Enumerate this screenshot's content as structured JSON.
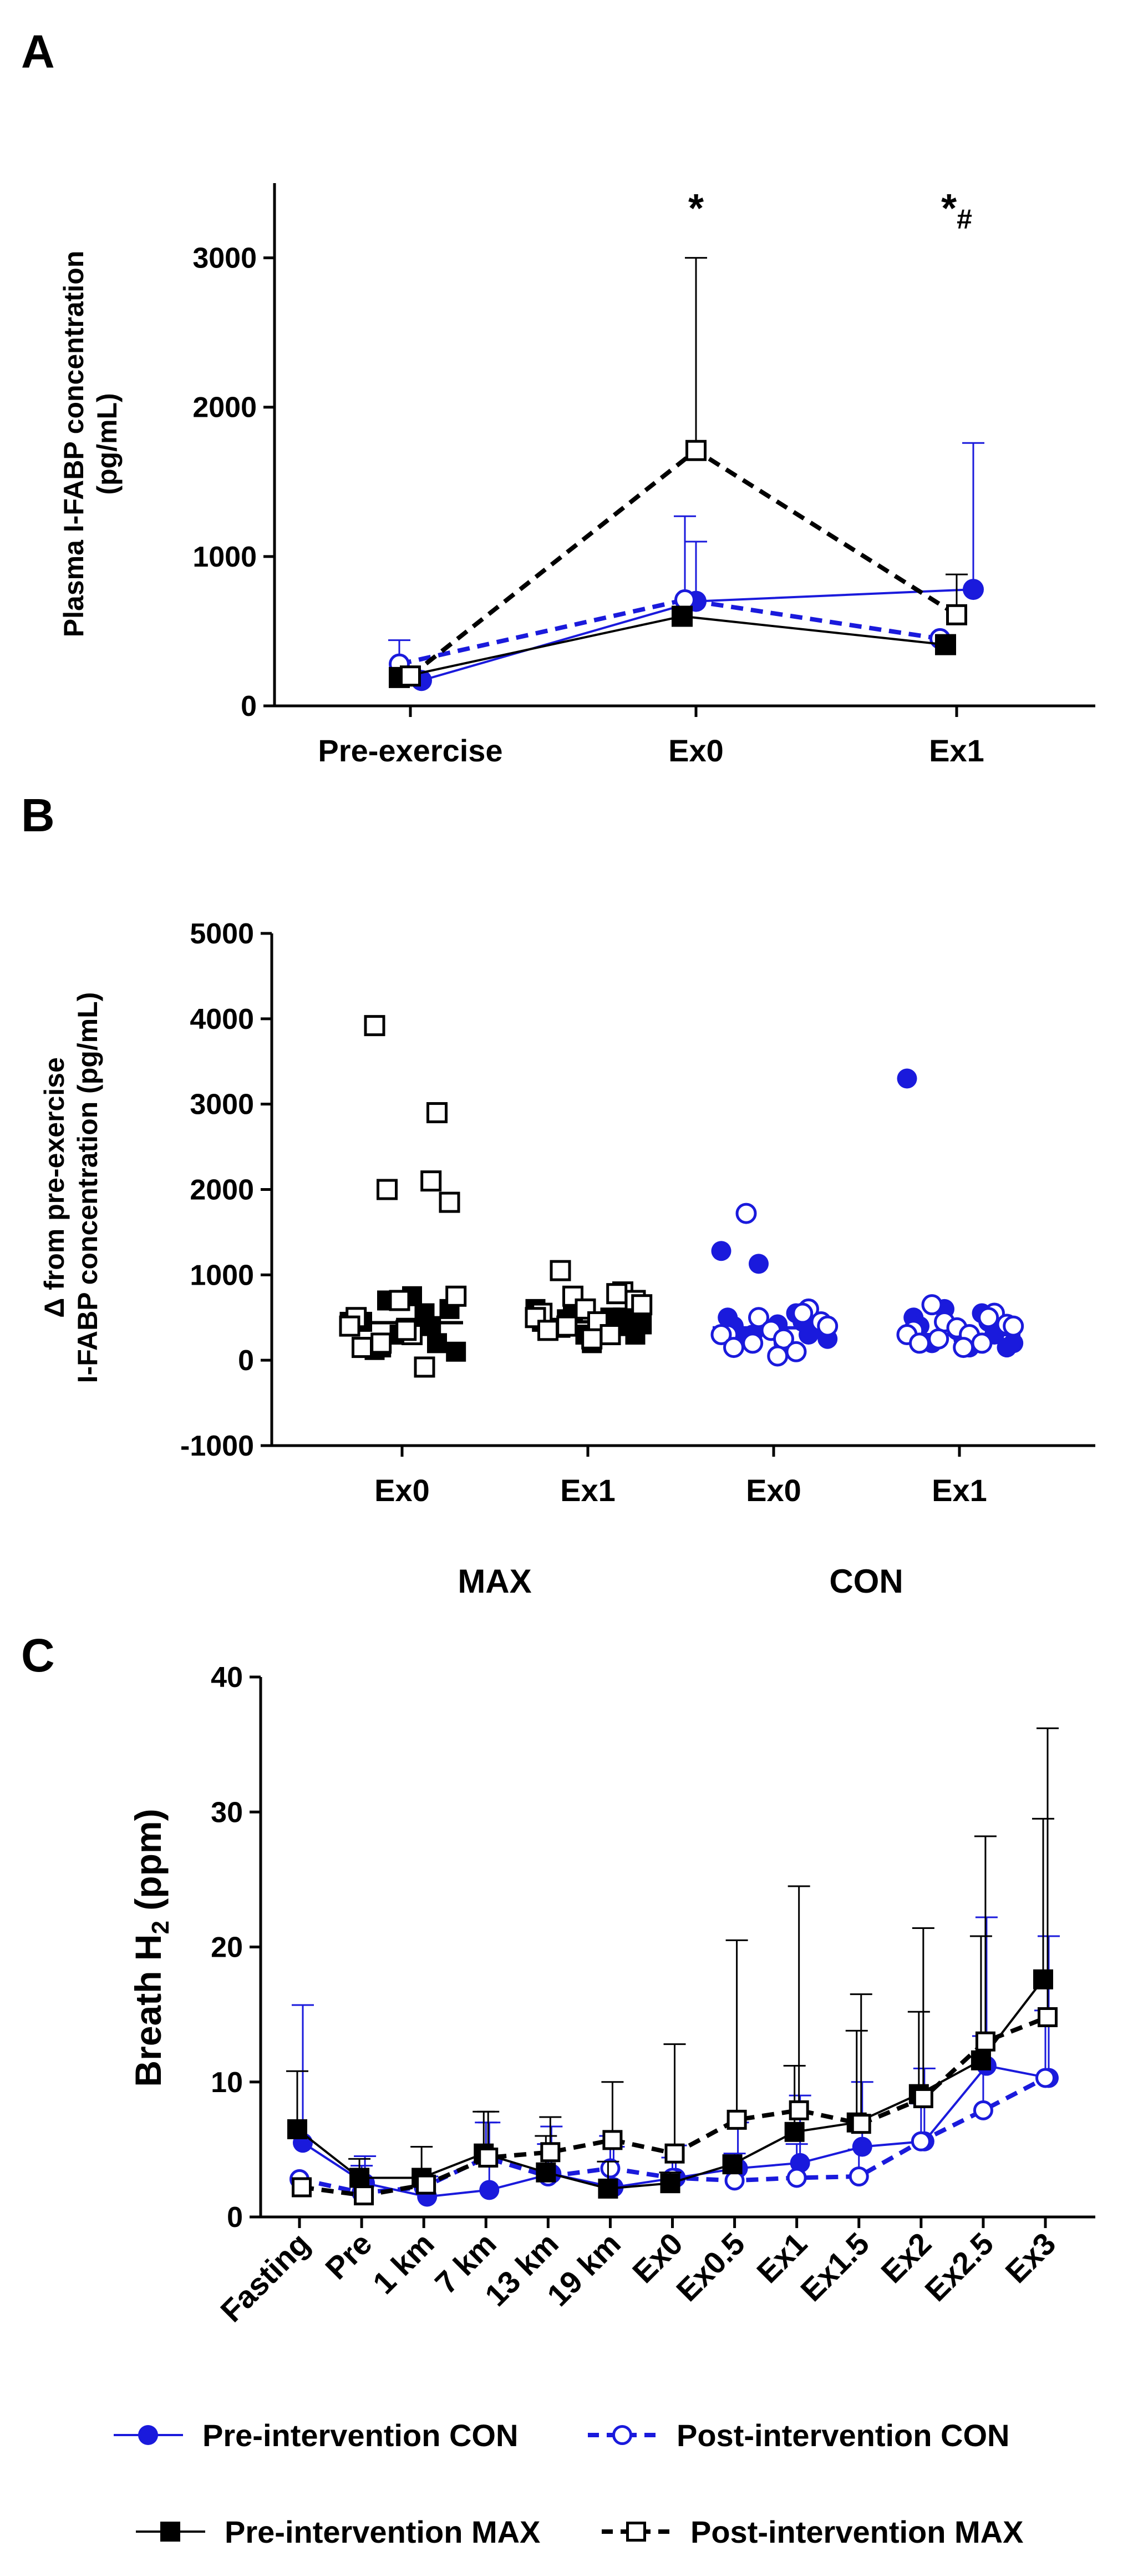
{
  "colors": {
    "blue": "#1a1adc",
    "black": "#000000"
  },
  "chart_data": [
    {
      "panel": "A",
      "type": "line",
      "ylabel_line1": "Plasma I-FABP concentration",
      "ylabel_line2": "(pg/mL)",
      "ylim": [
        0,
        3500
      ],
      "yticks": [
        "0",
        "1000",
        "2000",
        "3000"
      ],
      "categories": [
        "Pre-exercise",
        "Ex0",
        "Ex1"
      ],
      "annotations": [
        {
          "category": "Ex0",
          "text": "*"
        },
        {
          "category": "Ex1",
          "text": "*",
          "sub": "#"
        }
      ],
      "series": [
        {
          "name": "Pre-intervention CON",
          "marker": "circle-filled",
          "line": "solid",
          "color": "blue",
          "values": [
            170,
            700,
            780
          ],
          "err": [
            0,
            400,
            980
          ]
        },
        {
          "name": "Post-intervention CON",
          "marker": "circle-open",
          "line": "dashed",
          "color": "blue",
          "values": [
            280,
            710,
            450
          ],
          "err": [
            160,
            560,
            0
          ]
        },
        {
          "name": "Pre-intervention MAX",
          "marker": "square-filled",
          "line": "solid",
          "color": "black",
          "values": [
            190,
            600,
            410
          ],
          "err": [
            0,
            0,
            0
          ]
        },
        {
          "name": "Post-intervention MAX",
          "marker": "square-open",
          "line": "dashed",
          "color": "black",
          "values": [
            200,
            1710,
            610
          ],
          "err": [
            0,
            1290,
            270
          ]
        }
      ]
    },
    {
      "panel": "B",
      "type": "scatter",
      "ylabel_line1": "Δ from pre-exercise",
      "ylabel_line2": "I-FABP concentration (pg/mL)",
      "ylim": [
        -1000,
        5000
      ],
      "yticks": [
        "-1000",
        "0",
        "1000",
        "2000",
        "3000",
        "4000",
        "5000"
      ],
      "groups": [
        {
          "label": "Ex0",
          "group": "MAX",
          "color": "black",
          "filled": [
            450,
            700,
            550,
            500,
            400,
            450,
            300,
            200,
            150,
            100,
            120,
            750,
            600,
            380
          ],
          "open": [
            3920,
            2900,
            2100,
            2000,
            1850,
            750,
            700,
            500,
            400,
            300,
            200,
            150,
            -80,
            350
          ]
        },
        {
          "label": "Ex1",
          "group": "MAX",
          "color": "black",
          "filled": [
            600,
            550,
            500,
            450,
            400,
            350,
            300,
            500,
            480,
            420,
            380,
            350,
            300,
            200
          ],
          "open": [
            1050,
            800,
            780,
            750,
            700,
            650,
            600,
            550,
            500,
            450,
            400,
            350,
            300,
            250
          ]
        },
        {
          "label": "Ex0",
          "group": "CON",
          "color": "blue",
          "filled": [
            1280,
            1130,
            550,
            500,
            450,
            400,
            350,
            300,
            300,
            250,
            250,
            200,
            380,
            420
          ],
          "open": [
            1720,
            600,
            550,
            500,
            450,
            400,
            350,
            300,
            300,
            250,
            200,
            150,
            100,
            50
          ]
        },
        {
          "label": "Ex1",
          "group": "CON",
          "color": "blue",
          "filled": [
            3300,
            600,
            550,
            500,
            450,
            400,
            350,
            300,
            250,
            200,
            200,
            150,
            150,
            250
          ],
          "open": [
            650,
            550,
            500,
            450,
            420,
            400,
            380,
            350,
            300,
            300,
            250,
            200,
            200,
            150
          ]
        }
      ],
      "medians": [
        440,
        450,
        380,
        300
      ],
      "group_labels": [
        "MAX",
        "CON"
      ]
    },
    {
      "panel": "C",
      "type": "line",
      "ylabel_main": "Breath H",
      "ylabel_sub": "2",
      "ylabel_unit": " (ppm)",
      "ylim": [
        0,
        40
      ],
      "yticks": [
        "0",
        "10",
        "20",
        "30",
        "40"
      ],
      "categories": [
        "Fasting",
        "Pre",
        "1 km",
        "7 km",
        "13 km",
        "19 km",
        "Ex0",
        "Ex0.5",
        "Ex1",
        "Ex1.5",
        "Ex2",
        "Ex2.5",
        "Ex3"
      ],
      "series": [
        {
          "name": "Pre-intervention CON",
          "marker": "circle-filled",
          "line": "solid",
          "color": "blue",
          "values": [
            5.5,
            2.5,
            1.5,
            2.0,
            3.2,
            2.2,
            2.9,
            3.6,
            4.0,
            5.2,
            5.6,
            11.2,
            10.3
          ],
          "err": [
            10.2,
            2.0,
            1.5,
            5.0,
            3.5,
            3.0,
            2.4,
            3.4,
            5.0,
            4.8,
            5.4,
            11.0,
            10.5
          ]
        },
        {
          "name": "Post-intervention CON",
          "marker": "circle-open",
          "line": "dashed",
          "color": "blue",
          "values": [
            2.8,
            1.8,
            2.2,
            4.4,
            3.0,
            3.6,
            2.9,
            2.7,
            2.9,
            3.0,
            5.6,
            7.9,
            10.3
          ],
          "err": [
            0,
            2.0,
            0,
            2.6,
            2.4,
            2.4,
            1.5,
            2.0,
            2.5,
            2.0,
            2.8,
            5.5,
            5.0
          ]
        },
        {
          "name": "Pre-intervention MAX",
          "marker": "square-filled",
          "line": "solid",
          "color": "black",
          "values": [
            6.5,
            2.9,
            2.9,
            4.7,
            3.3,
            2.1,
            2.5,
            3.9,
            6.3,
            7.0,
            9.1,
            11.6,
            17.6
          ],
          "err": [
            4.3,
            1.4,
            2.3,
            3.1,
            2.7,
            2.0,
            0.8,
            0,
            4.9,
            6.8,
            6.1,
            9.2,
            11.9
          ]
        },
        {
          "name": "Post-intervention MAX",
          "marker": "square-open",
          "line": "dashed",
          "color": "black",
          "values": [
            2.2,
            1.6,
            2.4,
            4.4,
            4.8,
            5.7,
            4.7,
            7.2,
            7.9,
            6.9,
            8.8,
            13.0,
            14.8
          ],
          "err": [
            0,
            0,
            0,
            3.4,
            2.6,
            4.3,
            8.1,
            13.3,
            16.6,
            9.6,
            12.6,
            15.2,
            21.4
          ]
        }
      ]
    }
  ],
  "legend": [
    {
      "label": "Pre-intervention CON",
      "marker": "circle-filled",
      "line": "solid",
      "color": "blue"
    },
    {
      "label": "Post-intervention CON",
      "marker": "circle-open",
      "line": "dashed",
      "color": "blue"
    },
    {
      "label": "Pre-intervention MAX",
      "marker": "square-filled",
      "line": "solid",
      "color": "black"
    },
    {
      "label": "Post-intervention MAX",
      "marker": "square-open",
      "line": "dashed",
      "color": "black"
    }
  ],
  "panel_labels": [
    "A",
    "B",
    "C"
  ]
}
